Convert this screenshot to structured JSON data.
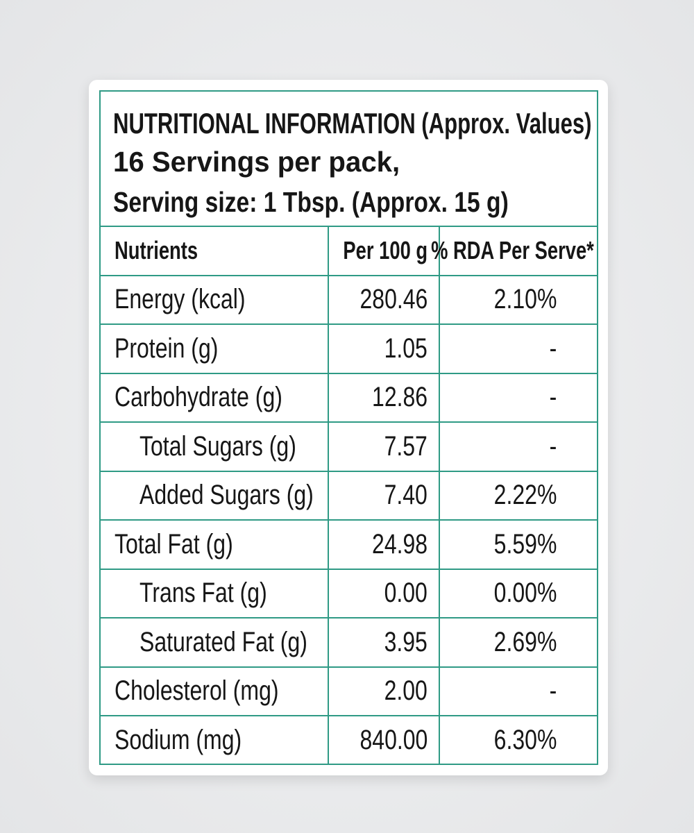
{
  "header": {
    "title": "NUTRITIONAL INFORMATION (Approx. Values)",
    "servings": "16 Servings per pack,",
    "serving_size": "Serving size: 1 Tbsp. (Approx. 15 g)"
  },
  "table": {
    "columns": [
      "Nutrients",
      "Per 100 g",
      "% RDA Per Serve*"
    ],
    "rows": [
      [
        "Energy (kcal)",
        "280.46",
        "2.10%"
      ],
      [
        "Protein (g)",
        "1.05",
        "-"
      ],
      [
        "Carbohydrate (g)",
        "12.86",
        "-"
      ],
      [
        "Total Sugars (g)",
        "7.57",
        "-"
      ],
      [
        "Added Sugars (g)",
        "7.40",
        "2.22%"
      ],
      [
        "Total Fat (g)",
        "24.98",
        "5.59%"
      ],
      [
        "Trans Fat (g)",
        "0.00",
        "0.00%"
      ],
      [
        "Saturated Fat (g)",
        "3.95",
        "2.69%"
      ],
      [
        "Cholesterol (mg)",
        "2.00",
        "-"
      ],
      [
        "Sodium (mg)",
        "840.00",
        "6.30%"
      ]
    ]
  }
}
